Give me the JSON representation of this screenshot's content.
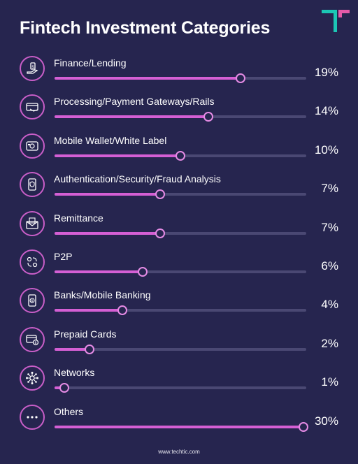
{
  "title": "Fintech Investment Categories",
  "footer": "www.techtic.com",
  "colors": {
    "background": "#26254f",
    "accent": "#d45fd4",
    "logo_teal": "#1cc6b4",
    "logo_pink": "#e45aa8"
  },
  "chart_data": {
    "type": "bar",
    "orientation": "horizontal",
    "title": "Fintech Investment Categories",
    "categories": [
      "Finance/Lending",
      "Processing/Payment Gateways/Rails",
      "Mobile Wallet/White Label",
      "Authentication/Security/Fraud Analysis",
      "Remittance",
      "P2P",
      "Banks/Mobile Banking",
      "Prepaid Cards",
      "Networks",
      "Others"
    ],
    "values": [
      19,
      14,
      10,
      7,
      7,
      6,
      4,
      2,
      1,
      30
    ],
    "labels": [
      "19%",
      "14%",
      "10%",
      "7%",
      "7%",
      "6%",
      "4%",
      "2%",
      "1%",
      "30%"
    ],
    "fill_fractions": [
      0.74,
      0.61,
      0.5,
      0.42,
      0.42,
      0.35,
      0.27,
      0.14,
      0.04,
      0.99
    ],
    "icons": [
      "money-hand-icon",
      "card-payment-icon",
      "wallet-icon",
      "security-phone-icon",
      "envelope-money-icon",
      "p2p-transfer-icon",
      "mobile-banking-icon",
      "prepaid-card-icon",
      "network-icon",
      "more-dots-icon"
    ]
  }
}
